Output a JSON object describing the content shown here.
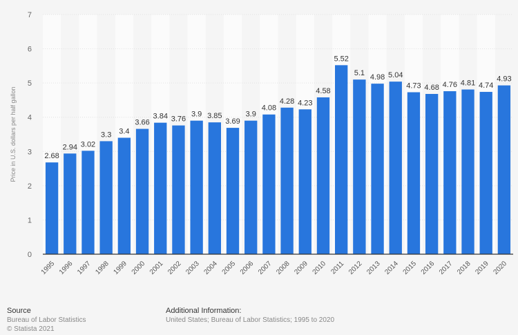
{
  "chart_data": {
    "type": "bar",
    "title": "",
    "xlabel": "",
    "ylabel": "Price in U.S. dollars per half gallon",
    "ylim": [
      0,
      7
    ],
    "yticks": [
      0,
      1,
      2,
      3,
      4,
      5,
      6,
      7
    ],
    "grid": true,
    "bar_color": "#2876dd",
    "categories": [
      "1995",
      "1996",
      "1997",
      "1998",
      "1999",
      "2000",
      "2001",
      "2002",
      "2003",
      "2004",
      "2005",
      "2006",
      "2007",
      "2008",
      "2009",
      "2010",
      "2011",
      "2012",
      "2013",
      "2014",
      "2015",
      "2016",
      "2017",
      "2018",
      "2019",
      "2020"
    ],
    "values": [
      2.68,
      2.94,
      3.02,
      3.3,
      3.4,
      3.66,
      3.84,
      3.76,
      3.9,
      3.85,
      3.69,
      3.9,
      4.08,
      4.28,
      4.23,
      4.58,
      5.52,
      5.1,
      4.98,
      5.04,
      4.73,
      4.68,
      4.76,
      4.81,
      4.74,
      4.93
    ]
  },
  "footer": {
    "source_heading": "Source",
    "source_text": "Bureau of Labor Statistics",
    "copyright": "© Statista 2021",
    "info_heading": "Additional Information:",
    "info_text": "United States; Bureau of Labor Statistics; 1995 to 2020"
  }
}
